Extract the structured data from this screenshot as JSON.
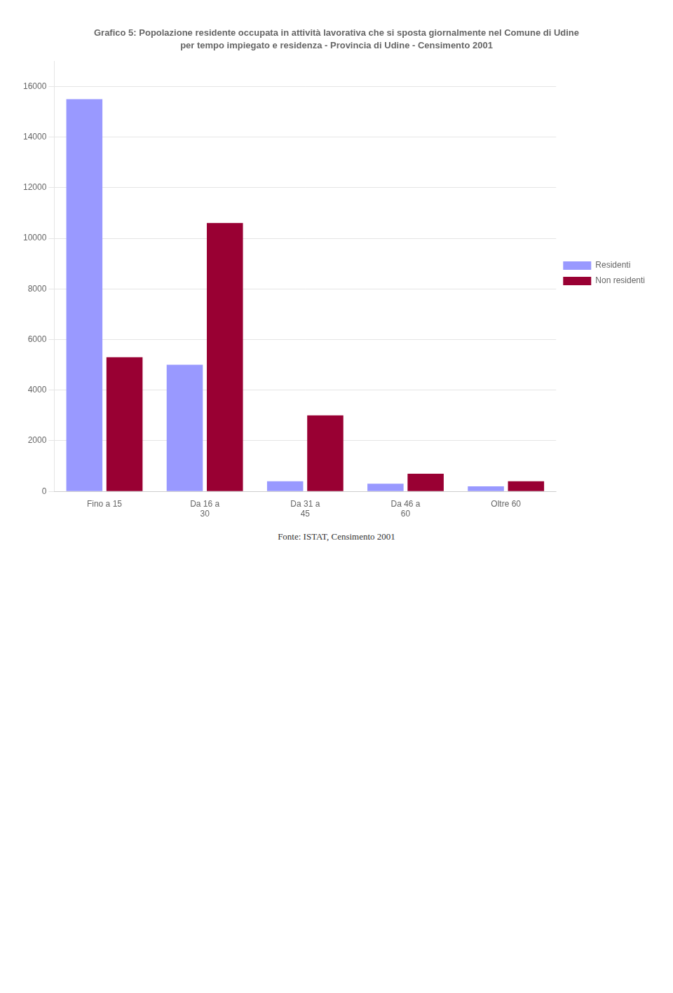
{
  "chart_data": {
    "type": "bar",
    "title": "Grafico 5: Popolazione residente occupata in attività lavorativa che si sposta giornalmente nel Comune di Udine",
    "subtitle": "per tempo impiegato e residenza - Provincia di Udine - Censimento 2001",
    "annotations": [
      "Fonte: ISTAT, Censimento 2001"
    ],
    "categories": [
      "Fino a 15",
      "Da 16 a\n30",
      "Da 31 a\n45",
      "Da 46 a\n60",
      "Oltre 60"
    ],
    "series": [
      {
        "name": "Residenti",
        "color": "#9999ff",
        "values": [
          15500,
          5000,
          400,
          300,
          200
        ]
      },
      {
        "name": "Non residenti",
        "color": "#990033",
        "values": [
          5300,
          10600,
          3000,
          700,
          400
        ]
      }
    ],
    "ylim": [
      0,
      17000
    ],
    "yticks": [
      0,
      2000,
      4000,
      6000,
      8000,
      10000,
      12000,
      14000,
      16000
    ],
    "grid": true,
    "legend": "right"
  }
}
